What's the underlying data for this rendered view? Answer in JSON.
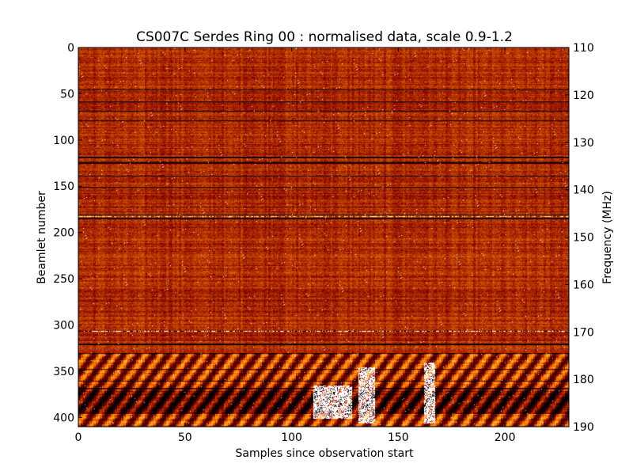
{
  "chart_data": {
    "type": "heatmap",
    "title": "CS007C Serdes Ring 00 : normalised data, scale 0.9-1.2",
    "xlabel": "Samples since observation start",
    "ylabel": "Beamlet number",
    "y2label": "Frequency (MHz)",
    "xlim": [
      0,
      230
    ],
    "ylim": [
      410,
      0
    ],
    "y2lim": [
      110,
      190
    ],
    "xticks": [
      0,
      50,
      100,
      150,
      200
    ],
    "yticks": [
      0,
      50,
      100,
      150,
      200,
      250,
      300,
      350,
      400
    ],
    "y2ticks": [
      110,
      120,
      130,
      140,
      150,
      160,
      170,
      180,
      190
    ],
    "color_scale": [
      0.9,
      1.2
    ],
    "colormap": "afmhot",
    "grid": false,
    "features": {
      "dark_horizontal_rows": [
        45,
        58,
        68,
        78,
        118,
        124,
        138,
        150,
        180,
        184,
        306,
        320,
        330,
        347,
        360,
        368
      ],
      "bright_row_segments": [
        {
          "row": 182,
          "x_start": 0,
          "x_end": 230,
          "value": 1.15
        },
        {
          "row": 306,
          "x_start": 0,
          "x_end": 230,
          "value": 1.2
        }
      ],
      "bright_blobs": [
        {
          "x_start": 110,
          "x_end": 127,
          "y_start": 365,
          "y_end": 400,
          "value": 1.2
        },
        {
          "x_start": 131,
          "x_end": 138,
          "y_start": 345,
          "y_end": 405,
          "value": 1.2
        },
        {
          "x_start": 162,
          "x_end": 166,
          "y_start": 340,
          "y_end": 405,
          "value": 1.2
        }
      ],
      "dark_band": {
        "y_start": 370,
        "y_end": 395,
        "value": 0.9
      }
    }
  }
}
